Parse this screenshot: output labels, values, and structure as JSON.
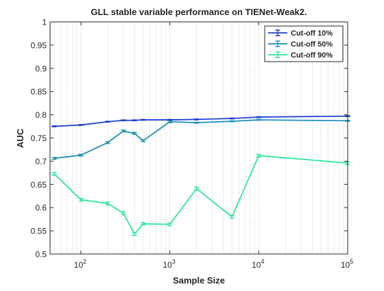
{
  "chart_data": {
    "type": "line",
    "title": "GLL stable variable performance on TIENet-Weak2.",
    "xlabel": "Sample Size",
    "ylabel": "AUC",
    "xscale": "log",
    "xlim": [
      45,
      100000
    ],
    "ylim": [
      0.5,
      1
    ],
    "yticks": [
      0.5,
      0.55,
      0.6,
      0.65,
      0.7,
      0.75,
      0.8,
      0.85,
      0.9,
      0.95,
      1
    ],
    "ytick_labels": [
      "0.5",
      "0.55",
      "0.6",
      "0.65",
      "0.7",
      "0.75",
      "0.8",
      "0.85",
      "0.9",
      "0.95",
      "1"
    ],
    "xticks": [
      {
        "value": 100,
        "base": "10",
        "exp": "2"
      },
      {
        "value": 1000,
        "base": "10",
        "exp": "3"
      },
      {
        "value": 10000,
        "base": "10",
        "exp": "4"
      },
      {
        "value": 100000,
        "base": "10",
        "exp": "5"
      }
    ],
    "grid": "vertical-minor-dotted",
    "legend": "top-right",
    "series": [
      {
        "name": "Cut-off 10%",
        "color": "#1f3fd1",
        "x": [
          50,
          100,
          200,
          300,
          400,
          500,
          1000,
          2000,
          5000,
          10000,
          100000
        ],
        "y": [
          0.775,
          0.778,
          0.785,
          0.788,
          0.788,
          0.789,
          0.789,
          0.79,
          0.792,
          0.795,
          0.797
        ],
        "err": [
          0.001,
          0.001,
          0.001,
          0.001,
          0.001,
          0.001,
          0.001,
          0.001,
          0.001,
          0.001,
          0.001
        ]
      },
      {
        "name": "Cut-off 50%",
        "color": "#1a8fb8",
        "x": [
          50,
          100,
          200,
          300,
          400,
          500,
          1000,
          2000,
          5000,
          10000,
          100000
        ],
        "y": [
          0.706,
          0.713,
          0.74,
          0.765,
          0.76,
          0.744,
          0.785,
          0.783,
          0.786,
          0.789,
          0.787
        ],
        "err": [
          0.002,
          0.002,
          0.002,
          0.002,
          0.002,
          0.002,
          0.002,
          0.001,
          0.001,
          0.001,
          0.001
        ]
      },
      {
        "name": "Cut-off 90%",
        "color": "#2ee89a",
        "x": [
          50,
          100,
          200,
          300,
          400,
          500,
          1000,
          2000,
          5000,
          10000,
          100000
        ],
        "y": [
          0.673,
          0.617,
          0.609,
          0.588,
          0.543,
          0.565,
          0.564,
          0.641,
          0.58,
          0.712,
          0.696
        ],
        "err": [
          0.003,
          0.003,
          0.003,
          0.003,
          0.003,
          0.003,
          0.003,
          0.003,
          0.003,
          0.003,
          0.003
        ]
      }
    ]
  }
}
